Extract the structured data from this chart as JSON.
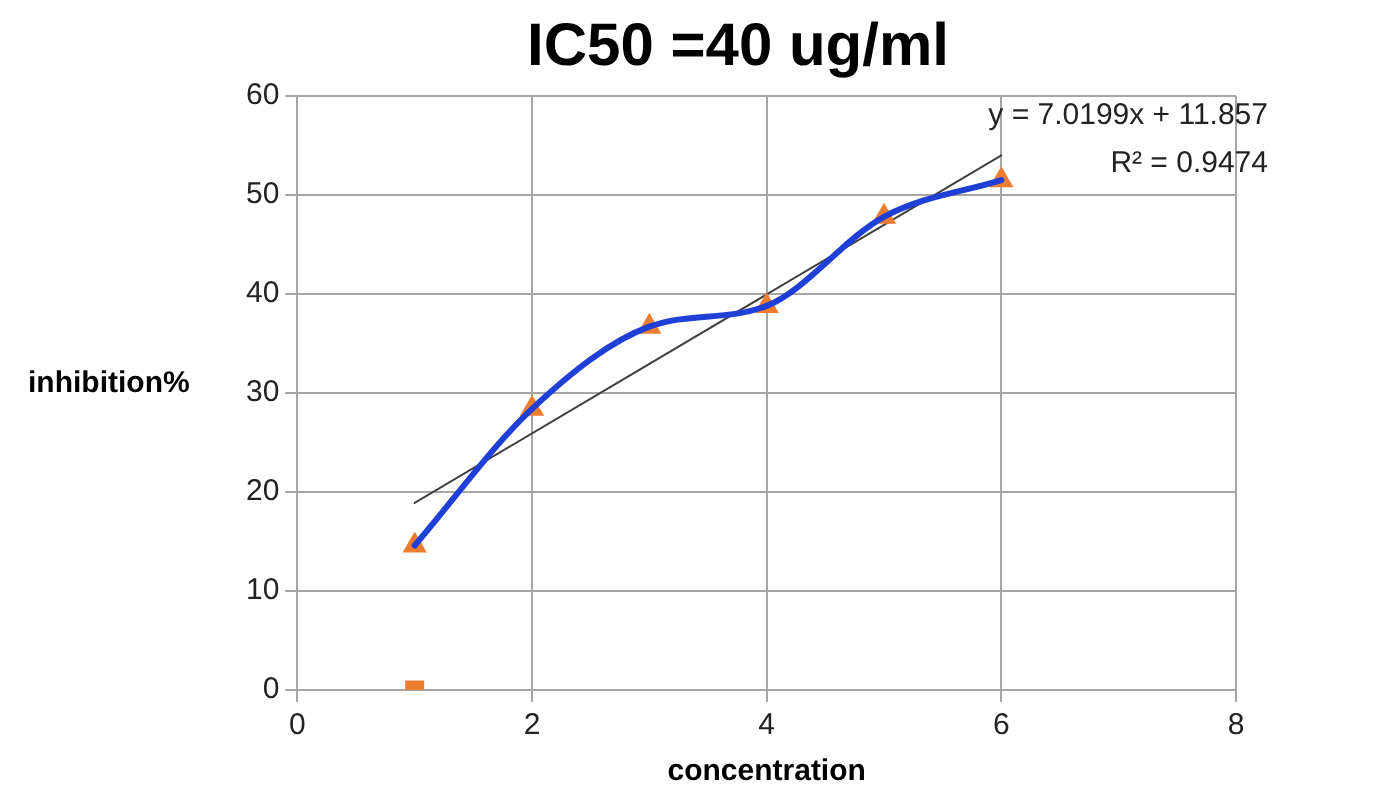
{
  "chart_data": {
    "type": "line",
    "title": "IC50 =40 ug/ml",
    "xlabel": "concentration",
    "ylabel": "inhibition%",
    "xlim": [
      0,
      8
    ],
    "xticks": [
      0,
      2,
      4,
      6,
      8
    ],
    "ylim": [
      0,
      60
    ],
    "yticks": [
      0,
      10,
      20,
      30,
      40,
      50,
      60
    ],
    "grid": true,
    "legend": false,
    "annotations": [
      "y = 7.0199x + 11.857",
      "R² = 0.9474"
    ],
    "series": [
      {
        "color": "#1f3fd6",
        "marker": "none",
        "line_style": "solid",
        "x": [
          1,
          2,
          3,
          4,
          5,
          6
        ],
        "values": [
          14.6,
          28.4,
          36.7,
          38.8,
          47.8,
          51.5
        ]
      },
      {
        "type": "scatter",
        "color": "#ed7d31",
        "marker": "triangle",
        "x": [
          1,
          2,
          3,
          4,
          5,
          6
        ],
        "values": [
          14.6,
          28.4,
          36.7,
          38.8,
          47.8,
          51.5
        ]
      },
      {
        "type": "scatter",
        "color": "#ed7d31",
        "marker": "square",
        "x": [
          1
        ],
        "values": [
          0
        ]
      },
      {
        "color": "#404040",
        "marker": "none",
        "line_style": "solid",
        "x": [
          1,
          6
        ],
        "values": [
          18.9,
          54.0
        ]
      }
    ]
  }
}
